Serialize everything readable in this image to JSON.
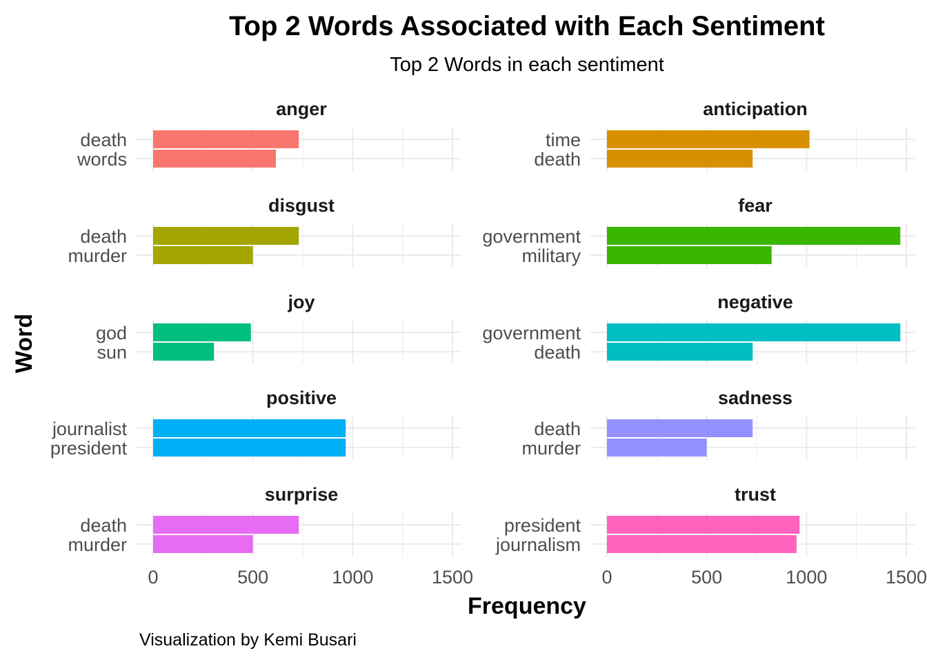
{
  "chart_data": {
    "type": "bar",
    "orientation": "horizontal",
    "facet": true,
    "title": "Top 2 Words Associated with Each Sentiment",
    "subtitle": "Top 2 Words in each sentiment",
    "xlabel": "Frequency",
    "ylabel": "Word",
    "caption": "Visualization by Kemi Busari",
    "xlim": [
      0,
      1500
    ],
    "xticks": [
      0,
      500,
      1000,
      1500
    ],
    "grid": true,
    "legend": "none",
    "panels": [
      {
        "sentiment": "anger",
        "color": "#F8766D",
        "words": [
          "death",
          "words"
        ],
        "values": [
          730,
          615
        ]
      },
      {
        "sentiment": "anticipation",
        "color": "#D89000",
        "words": [
          "time",
          "death"
        ],
        "values": [
          1015,
          730
        ]
      },
      {
        "sentiment": "disgust",
        "color": "#A3A500",
        "words": [
          "death",
          "murder"
        ],
        "values": [
          730,
          500
        ]
      },
      {
        "sentiment": "fear",
        "color": "#39B600",
        "words": [
          "government",
          "military"
        ],
        "values": [
          1470,
          825
        ]
      },
      {
        "sentiment": "joy",
        "color": "#00BF7D",
        "words": [
          "god",
          "sun"
        ],
        "values": [
          490,
          305
        ]
      },
      {
        "sentiment": "negative",
        "color": "#00BFC4",
        "words": [
          "government",
          "death"
        ],
        "values": [
          1470,
          730
        ]
      },
      {
        "sentiment": "positive",
        "color": "#00B0F6",
        "words": [
          "journalist",
          "president"
        ],
        "values": [
          965,
          965
        ]
      },
      {
        "sentiment": "sadness",
        "color": "#9590FF",
        "words": [
          "death",
          "murder"
        ],
        "values": [
          730,
          500
        ]
      },
      {
        "sentiment": "surprise",
        "color": "#E76BF3",
        "words": [
          "death",
          "murder"
        ],
        "values": [
          730,
          500
        ]
      },
      {
        "sentiment": "trust",
        "color": "#FF62BC",
        "words": [
          "president",
          "journalism"
        ],
        "values": [
          965,
          950
        ]
      }
    ]
  }
}
